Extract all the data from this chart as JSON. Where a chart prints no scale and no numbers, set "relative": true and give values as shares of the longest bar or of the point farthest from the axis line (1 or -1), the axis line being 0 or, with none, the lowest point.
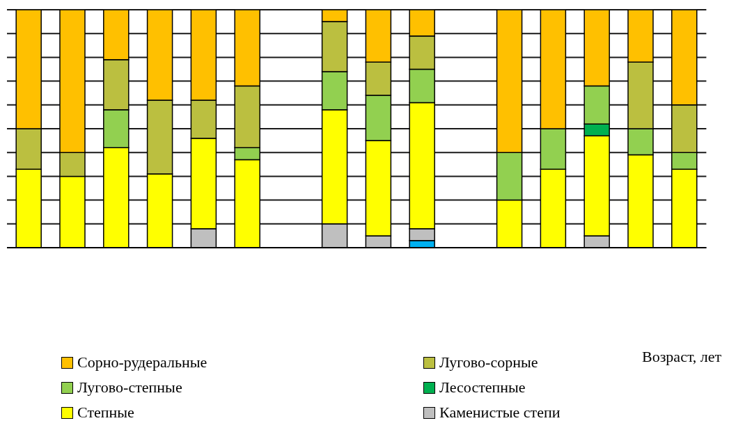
{
  "chart_data": [
    {
      "type": "bar",
      "stacked": true,
      "relative": true,
      "grid": "y",
      "legend": "bottom",
      "categories": [
        null,
        null,
        null,
        null,
        null,
        null
      ],
      "series": [
        {
          "name": "Каменистые степи",
          "color": "#bfbfbf",
          "values": [
            null,
            null,
            null,
            null,
            0.08,
            null
          ]
        },
        {
          "name": "Степные",
          "color": "#ffff00",
          "values": [
            0.33,
            0.3,
            0.42,
            0.31,
            0.38,
            0.37
          ]
        },
        {
          "name": "Лесостепные",
          "color": "#00b050",
          "values": [
            null,
            null,
            null,
            null,
            null,
            null
          ]
        },
        {
          "name": "Лугово-степные",
          "color": "#92d050",
          "values": [
            null,
            null,
            0.16,
            null,
            null,
            0.05
          ]
        },
        {
          "name": "Лугово-сорные",
          "color": "#bbbf40",
          "values": [
            0.17,
            0.1,
            0.21,
            0.31,
            0.16,
            0.26
          ]
        },
        {
          "name": "Сорно-рудеральные",
          "color": "#ffc000",
          "values": [
            0.5,
            0.6,
            0.21,
            0.38,
            0.38,
            0.32
          ]
        }
      ]
    },
    {
      "type": "bar",
      "stacked": true,
      "relative": true,
      "grid": "y",
      "categories": [
        null,
        null,
        null
      ],
      "series": [
        {
          "color": "#00b0f0",
          "values": [
            null,
            null,
            0.03
          ]
        },
        {
          "color": "#bfbfbf",
          "values": [
            0.1,
            0.05,
            0.05
          ]
        },
        {
          "color": "#ffff00",
          "values": [
            0.48,
            0.4,
            0.53
          ]
        },
        {
          "color": "#92d050",
          "values": [
            0.16,
            0.19,
            0.14
          ]
        },
        {
          "color": "#bbbf40",
          "values": [
            0.21,
            0.14,
            0.14
          ]
        },
        {
          "color": "#ffc000",
          "values": [
            0.05,
            0.22,
            0.11
          ]
        }
      ]
    },
    {
      "type": "bar",
      "stacked": true,
      "relative": true,
      "grid": "y",
      "xlabel": "Возраст, лет",
      "categories": [
        null,
        null,
        null,
        null,
        null
      ],
      "series": [
        {
          "color": "#bfbfbf",
          "values": [
            null,
            null,
            0.05,
            null,
            null
          ]
        },
        {
          "color": "#ffff00",
          "values": [
            0.2,
            0.33,
            0.42,
            0.39,
            0.33
          ]
        },
        {
          "color": "#00b050",
          "values": [
            null,
            null,
            0.05,
            null,
            null
          ]
        },
        {
          "color": "#92d050",
          "values": [
            0.2,
            0.17,
            0.16,
            0.11,
            0.07
          ]
        },
        {
          "color": "#bbbf40",
          "values": [
            null,
            null,
            null,
            0.28,
            0.2
          ]
        },
        {
          "color": "#ffc000",
          "values": [
            0.6,
            0.5,
            0.32,
            0.22,
            0.4
          ]
        }
      ]
    }
  ]
}
